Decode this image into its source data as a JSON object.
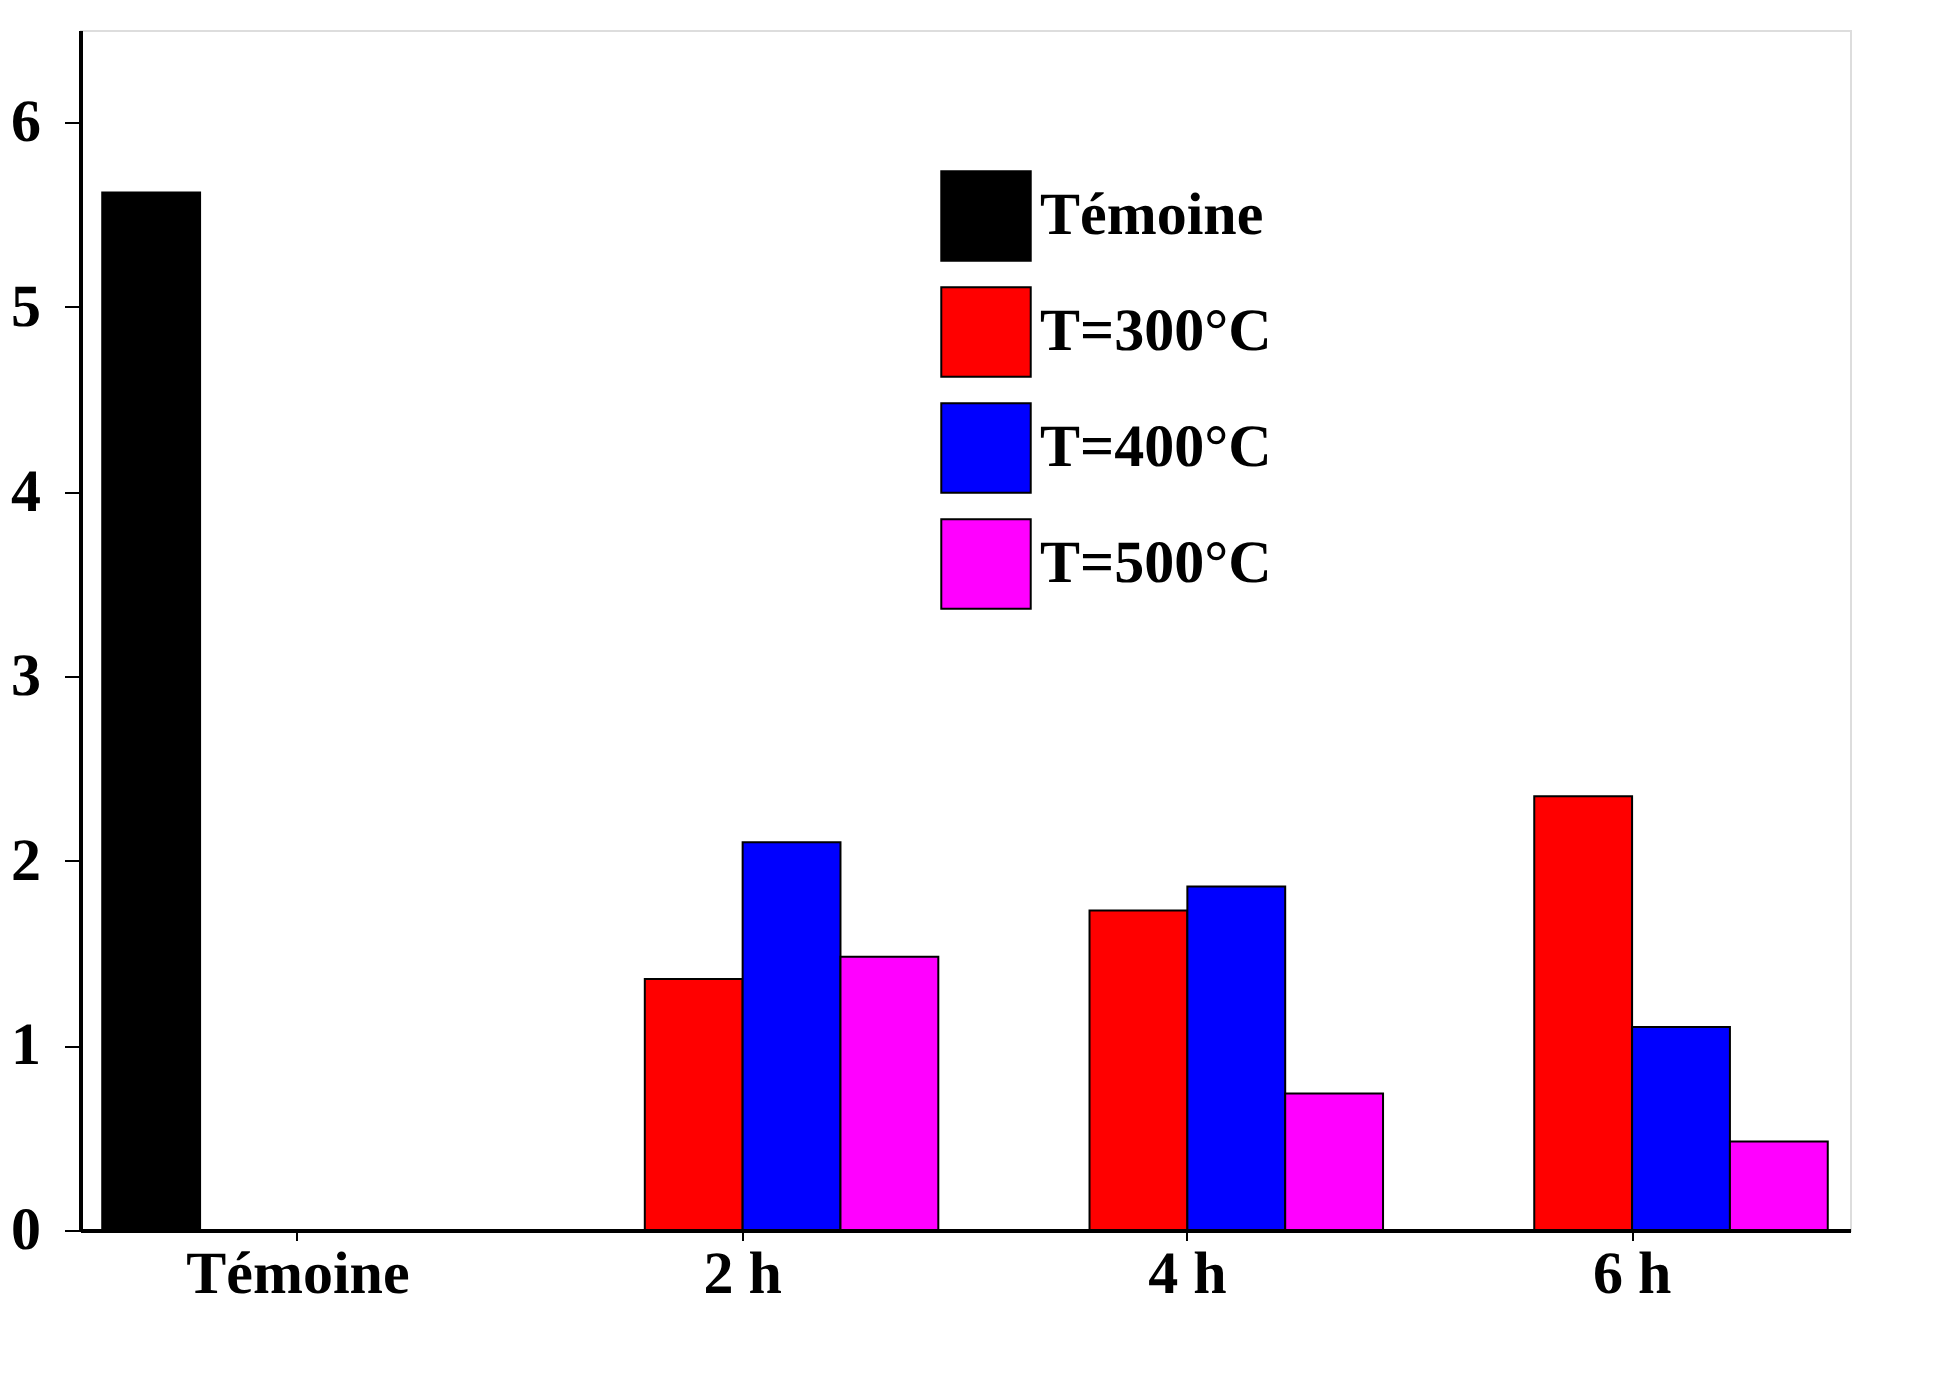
{
  "chart_data": {
    "type": "bar",
    "categories": [
      "Témoine",
      "2 h",
      "4 h",
      "6 h"
    ],
    "series": [
      {
        "name": "Témoine",
        "color": "#000000",
        "values": [
          5.62,
          null,
          null,
          null
        ]
      },
      {
        "name": "T=300°C",
        "color": "#ff0000",
        "values": [
          null,
          1.36,
          1.73,
          2.35
        ]
      },
      {
        "name": "T=400°C",
        "color": "#0000ff",
        "values": [
          null,
          2.1,
          1.86,
          1.1
        ]
      },
      {
        "name": "T=500°C",
        "color": "#ff00ff",
        "values": [
          null,
          1.48,
          0.74,
          0.48
        ]
      }
    ],
    "ylim": [
      0,
      6.5
    ],
    "yticks": [
      0,
      1,
      2,
      3,
      4,
      5,
      6
    ],
    "grid": false,
    "legend": "top right"
  }
}
